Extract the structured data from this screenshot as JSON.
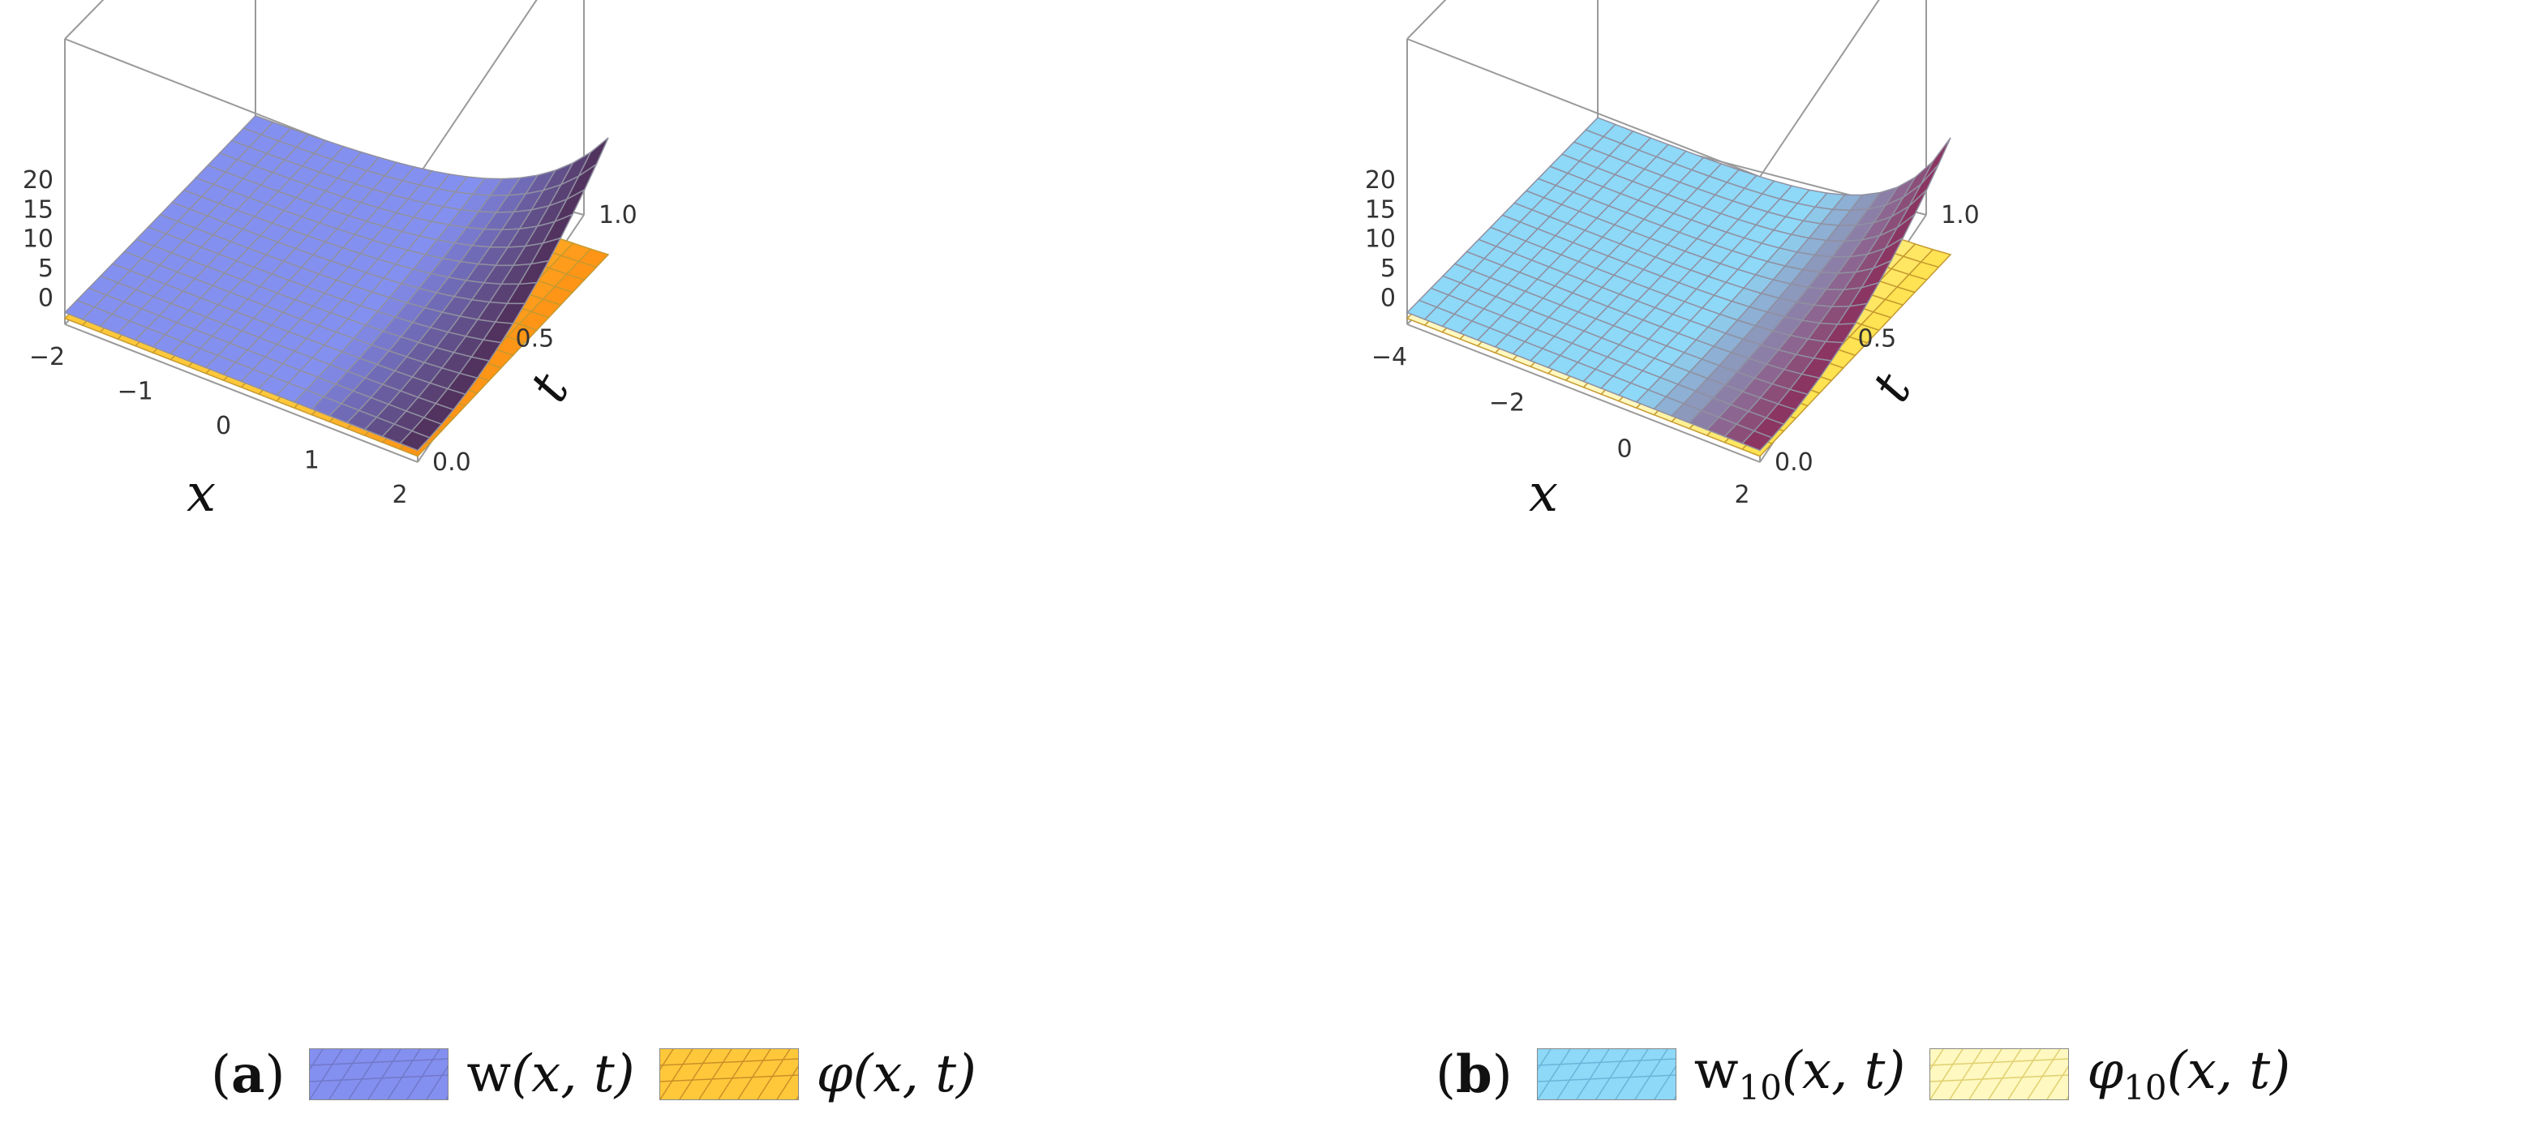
{
  "chart_data": [
    {
      "type": "surface3d",
      "panel_label": "a",
      "x_label": "x",
      "t_label": "t",
      "x_ticks": [
        "−2",
        "−1",
        "0",
        "1",
        "2"
      ],
      "t_ticks": [
        "0.0",
        "0.5",
        "1.0"
      ],
      "z_ticks": [
        "0",
        "5",
        "10",
        "15",
        "20"
      ],
      "x_range": [
        -2,
        2
      ],
      "t_range": [
        0,
        1
      ],
      "z_range": [
        -2,
        20
      ],
      "series": [
        {
          "name": "w(x, t)",
          "name_base": "w",
          "name_sub": "",
          "name_args": "(x, t)",
          "function": "exp(x) * t^2 (approx)",
          "color": "#8490f0",
          "dark_color": "#4a2346",
          "samples": {
            "x": [
              -2,
              -1,
              0,
              1,
              2
            ],
            "t": [
              0,
              0.5,
              1
            ],
            "z": [
              [
                0,
                0,
                0
              ],
              [
                0,
                0.1,
                0.4
              ],
              [
                0,
                0.6,
                2.2
              ],
              [
                0,
                2.0,
                7.5
              ],
              [
                0,
                5.3,
                20.0
              ]
            ]
          }
        },
        {
          "name": "φ(x, t)",
          "name_base": "φ",
          "name_sub": "",
          "name_args": "(x, t)",
          "function": "near-flat sheet below w",
          "color": "#ffc83a",
          "dark_color": "#ff8c10",
          "samples": {
            "x": [
              -2,
              0,
              2
            ],
            "t": [
              0,
              1
            ],
            "z": [
              [
                -1,
                -1
              ],
              [
                -1,
                -1
              ],
              [
                -1,
                0
              ]
            ]
          }
        }
      ]
    },
    {
      "type": "surface3d",
      "panel_label": "b",
      "x_label": "x",
      "t_label": "t",
      "x_ticks": [
        "−4",
        "−2",
        "0",
        "2"
      ],
      "t_ticks": [
        "0.0",
        "0.5",
        "1.0"
      ],
      "z_ticks": [
        "0",
        "5",
        "10",
        "15",
        "20"
      ],
      "x_range": [
        -4,
        2
      ],
      "t_range": [
        0,
        1
      ],
      "z_range": [
        -2,
        20
      ],
      "series": [
        {
          "name": "w10(x, t)",
          "name_base": "w",
          "name_sub": "10",
          "name_args": "(x, t)",
          "function": "exp(x) * t^2 (approx)",
          "color": "#8ed8f8",
          "dark_color": "#8a1a4a",
          "samples": {
            "x": [
              -4,
              -2,
              0,
              1,
              2
            ],
            "t": [
              0,
              0.5,
              1
            ],
            "z": [
              [
                0,
                0,
                0
              ],
              [
                0,
                0,
                0.1
              ],
              [
                0,
                0.6,
                2.2
              ],
              [
                0,
                2.0,
                7.5
              ],
              [
                0,
                5.3,
                20.0
              ]
            ]
          }
        },
        {
          "name": "φ10(x, t)",
          "name_base": "φ",
          "name_sub": "10",
          "name_args": "(x, t)",
          "function": "near-flat sheet below w10",
          "color": "#fff8c0",
          "dark_color": "#ffe040",
          "samples": {
            "x": [
              -4,
              0,
              2
            ],
            "t": [
              0,
              1
            ],
            "z": [
              [
                -1,
                -1
              ],
              [
                -1,
                -1
              ],
              [
                -1,
                0
              ]
            ]
          }
        }
      ]
    }
  ]
}
